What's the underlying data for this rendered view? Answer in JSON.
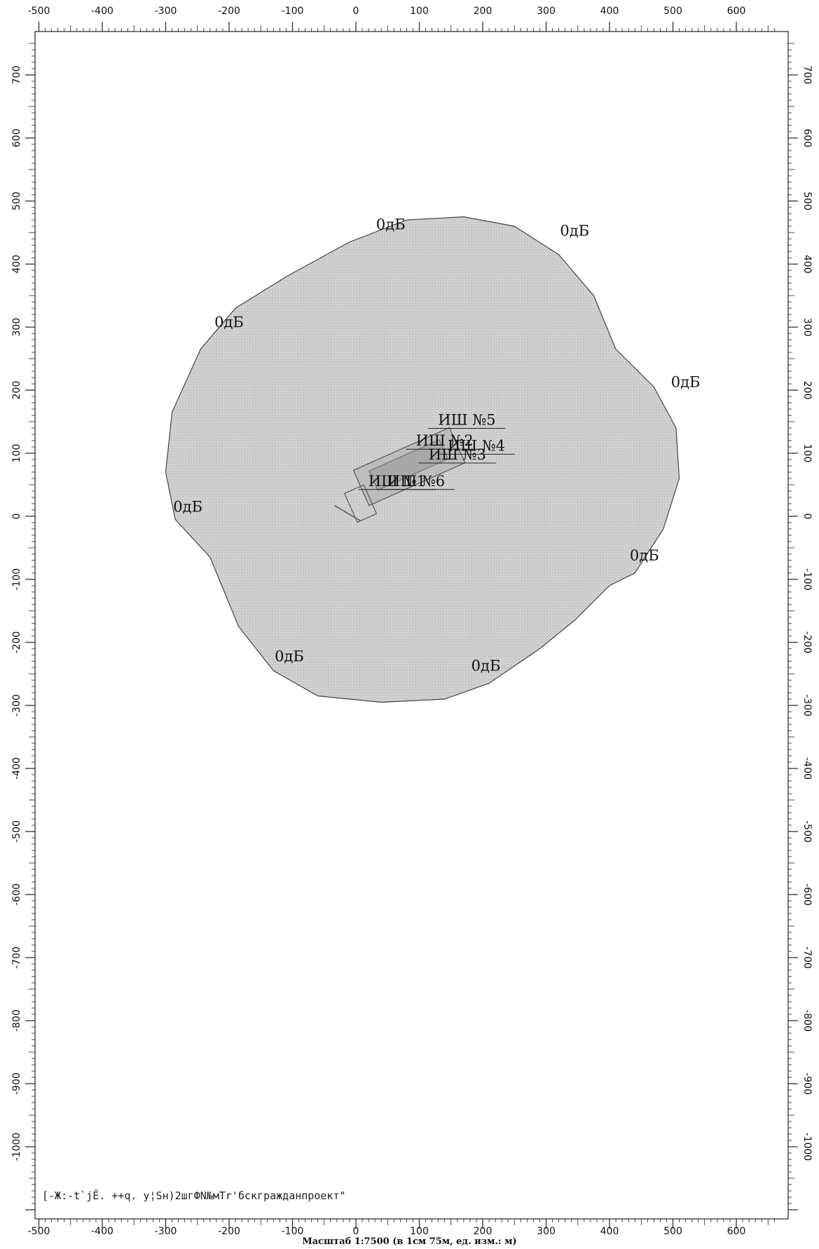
{
  "chart_data": {
    "type": "contour-map",
    "x_axis": {
      "min": -500,
      "max": 600,
      "ticks": [
        -500,
        -400,
        -300,
        -200,
        -100,
        0,
        100,
        200,
        300,
        400,
        500,
        600
      ]
    },
    "y_axis": {
      "min": -1100,
      "max": 700,
      "ticks": [
        700,
        600,
        500,
        400,
        300,
        200,
        100,
        0,
        -100,
        -200,
        -300,
        -400,
        -500,
        -600,
        -700,
        -800,
        -900,
        -1000
      ]
    },
    "grid": false,
    "contour": {
      "level_label": "0дБ",
      "fill": "#cfcfcf",
      "points": [
        [
          170,
          475
        ],
        [
          250,
          460
        ],
        [
          320,
          415
        ],
        [
          375,
          350
        ],
        [
          410,
          265
        ],
        [
          470,
          205
        ],
        [
          505,
          140
        ],
        [
          510,
          60
        ],
        [
          485,
          -20
        ],
        [
          440,
          -90
        ],
        [
          400,
          -110
        ],
        [
          345,
          -165
        ],
        [
          290,
          -210
        ],
        [
          210,
          -265
        ],
        [
          140,
          -290
        ],
        [
          40,
          -295
        ],
        [
          -60,
          -285
        ],
        [
          -130,
          -245
        ],
        [
          -185,
          -175
        ],
        [
          -230,
          -65
        ],
        [
          -285,
          -5
        ],
        [
          -300,
          70
        ],
        [
          -290,
          165
        ],
        [
          -245,
          265
        ],
        [
          -190,
          330
        ],
        [
          -110,
          380
        ],
        [
          -10,
          435
        ],
        [
          80,
          470
        ]
      ],
      "labels": [
        {
          "x": 55,
          "y": 455,
          "text": "0дБ"
        },
        {
          "x": 345,
          "y": 445,
          "text": "0дБ"
        },
        {
          "x": -200,
          "y": 300,
          "text": "0дБ"
        },
        {
          "x": 520,
          "y": 205,
          "text": "0дБ"
        },
        {
          "x": -265,
          "y": 7,
          "text": "0дБ"
        },
        {
          "x": 455,
          "y": -70,
          "text": "0дБ"
        },
        {
          "x": -105,
          "y": -230,
          "text": "0дБ"
        },
        {
          "x": 205,
          "y": -245,
          "text": "0дБ"
        }
      ]
    },
    "sources": [
      {
        "x": 175,
        "y": 145,
        "text": "ИШ №5"
      },
      {
        "x": 140,
        "y": 112,
        "text": "ИШ №2"
      },
      {
        "x": 190,
        "y": 104,
        "text": "ИШ №4"
      },
      {
        "x": 160,
        "y": 90,
        "text": "ИШ №3"
      },
      {
        "x": 65,
        "y": 48,
        "text": "ИШ №1"
      },
      {
        "x": 95,
        "y": 48,
        "text": "ИШ №6"
      }
    ]
  },
  "footer": {
    "stamp": "[-Ж:-t`jЁ. ++q. у¦Sн)2шгФN№мТr'бскгражданпроект\"",
    "scale": "Масштаб 1:7500 (в 1см 75м, ед. изм.: м)"
  }
}
